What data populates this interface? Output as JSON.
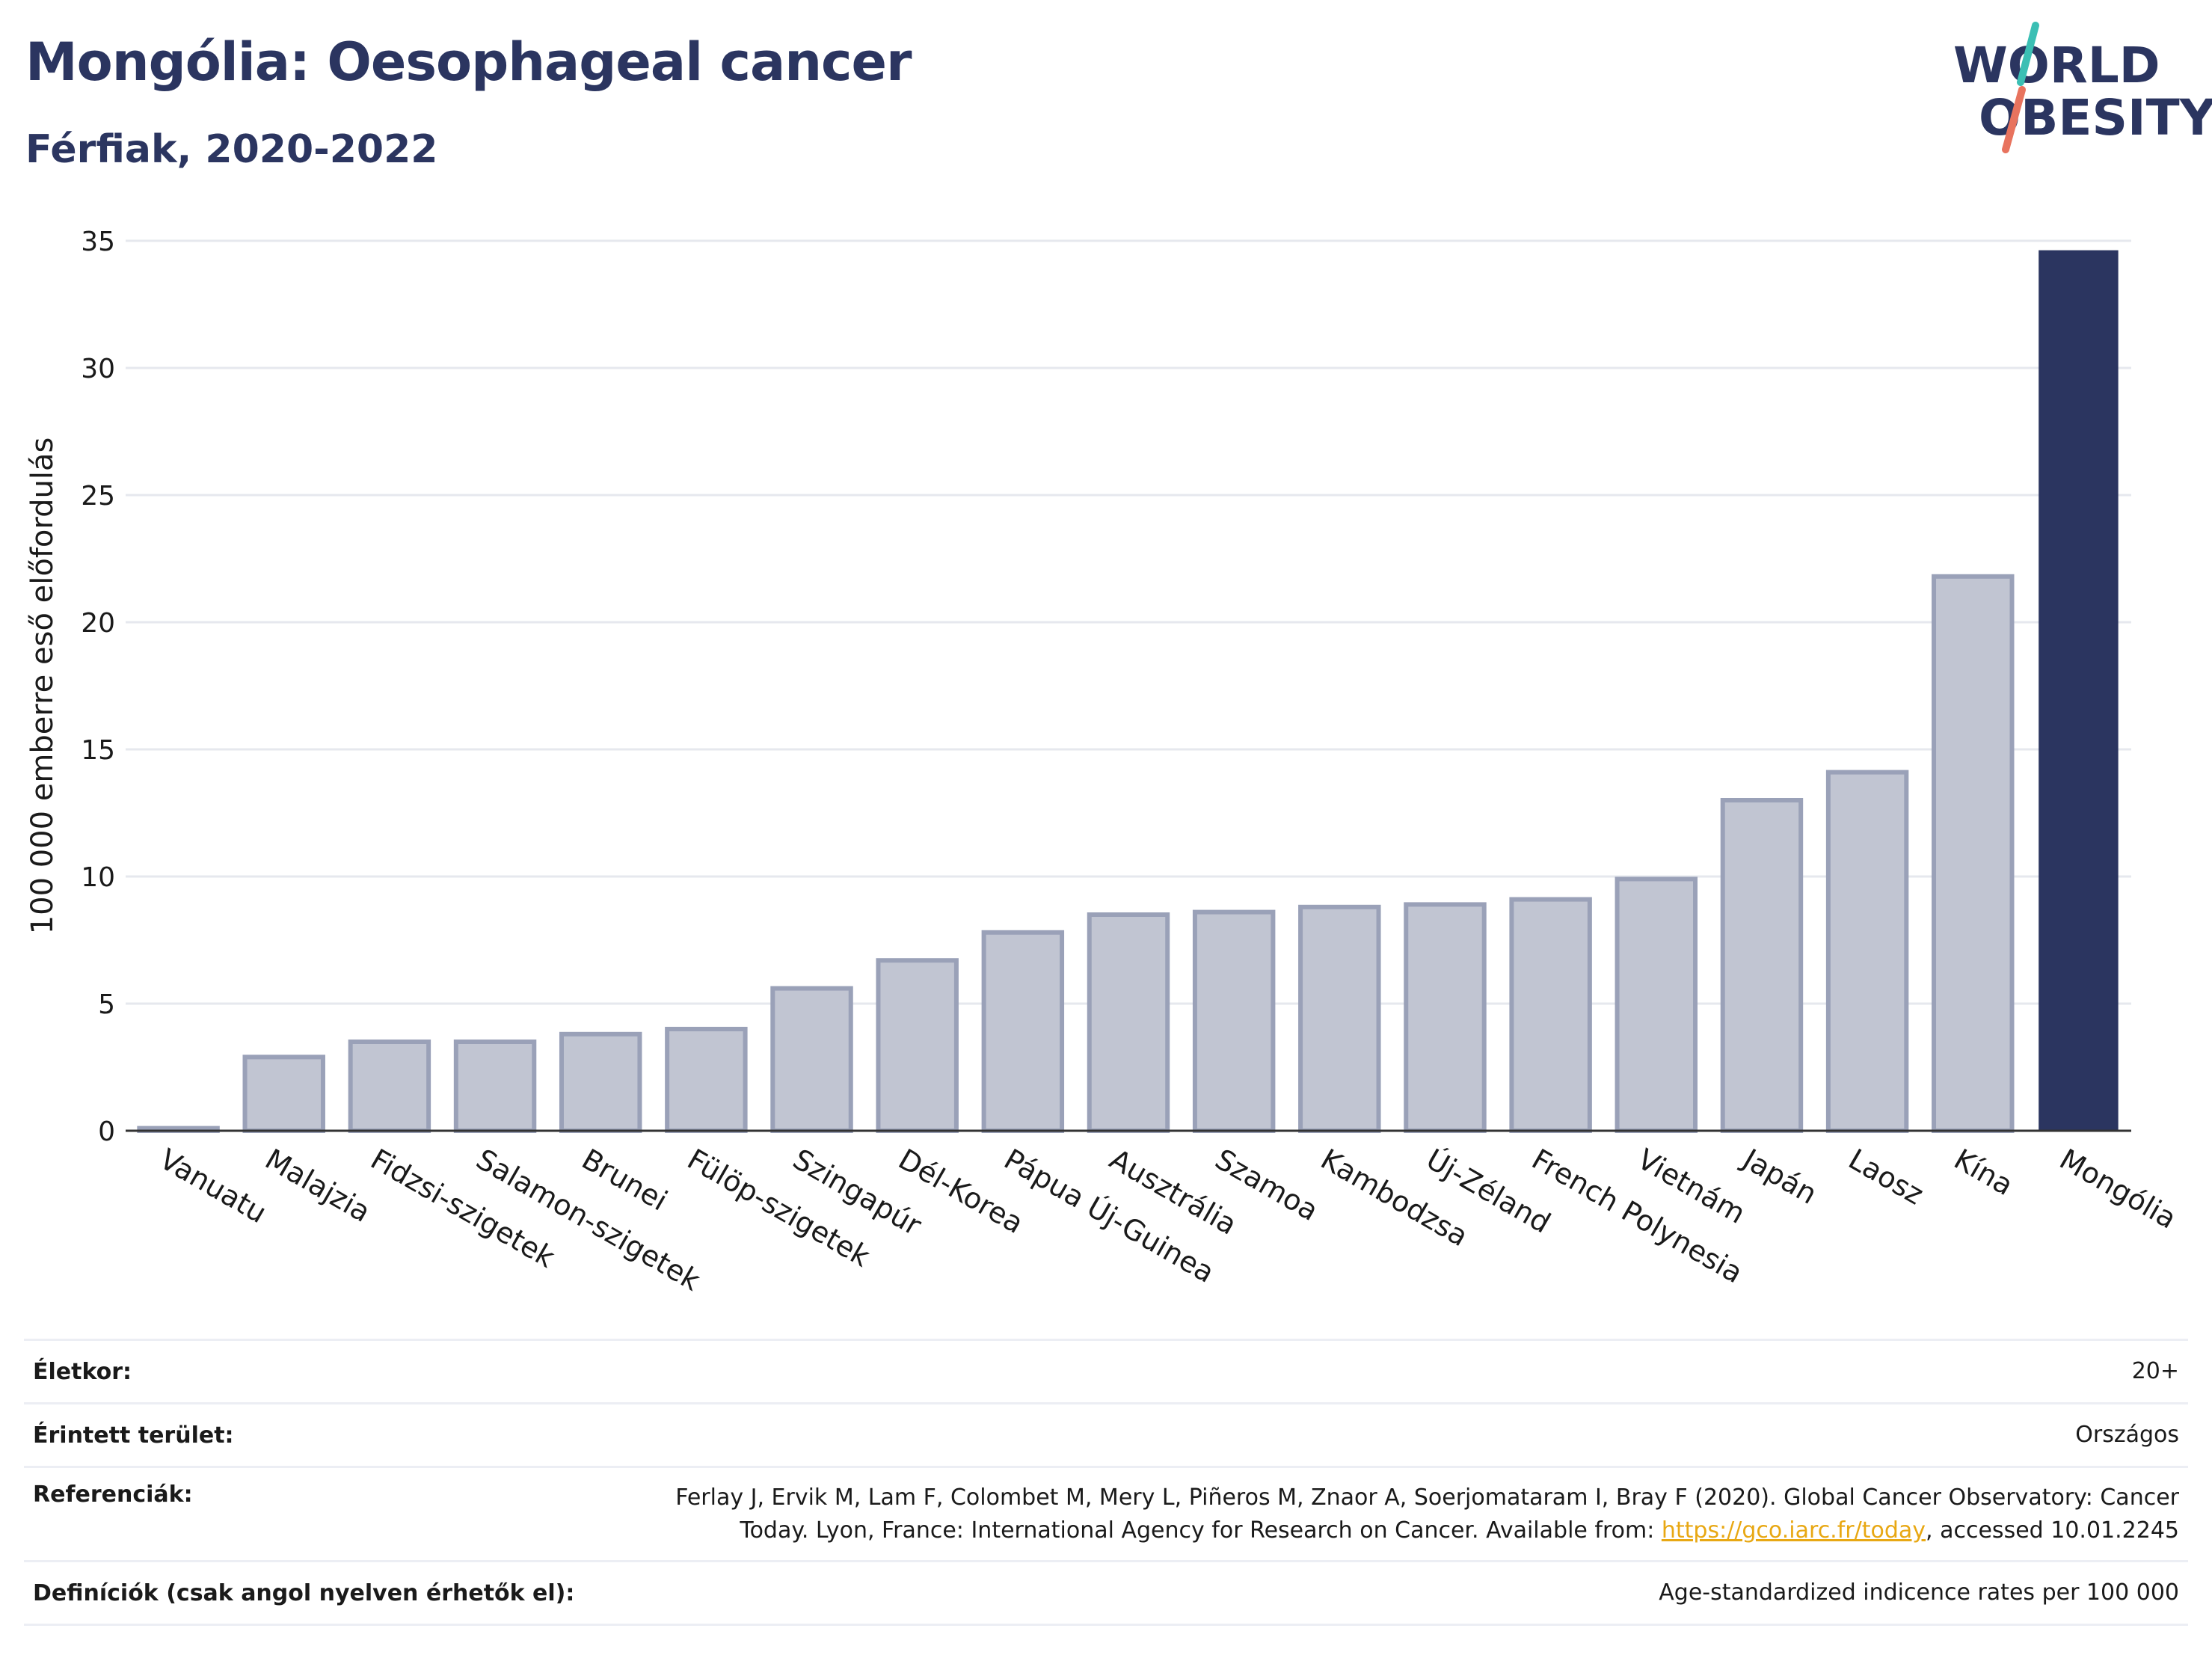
{
  "header": {
    "title": "Mongólia: Oesophageal cancer",
    "subtitle": "Férfiak, 2020-2022",
    "logo_line1": "WORLD",
    "logo_line2": "OBESITY"
  },
  "chart_data": {
    "type": "bar",
    "ylabel": "100 000 emberre eső előfordulás",
    "ylim": [
      0,
      35
    ],
    "yticks": [
      0,
      5,
      10,
      15,
      20,
      25,
      30,
      35
    ],
    "grid": true,
    "categories": [
      "Vanuatu",
      "Malajzia",
      "Fidzsi-szigetek",
      "Salamon-szigetek",
      "Brunei",
      "Fülöp-szigetek",
      "Szingapúr",
      "Dél-Korea",
      "Pápua Új-Guinea",
      "Ausztrália",
      "Szamoa",
      "Kambodzsa",
      "Új-Zéland",
      "French Polynesia",
      "Vietnám",
      "Japán",
      "Laosz",
      "Kína",
      "Mongólia"
    ],
    "values": [
      0.1,
      2.9,
      3.5,
      3.5,
      3.8,
      4.0,
      5.6,
      6.7,
      7.8,
      8.5,
      8.6,
      8.8,
      8.9,
      9.1,
      9.9,
      13.0,
      14.1,
      21.8,
      34.6
    ],
    "highlight": "Mongólia",
    "colors": {
      "bar": "#c1c5d2",
      "bar_stroke": "#9aa1b8",
      "highlight": "#2b3560",
      "grid": "#e6e8ee",
      "axis": "#333333"
    }
  },
  "info": {
    "age_label": "Életkor:",
    "age_value": "20+",
    "area_label": "Érintett terület:",
    "area_value": "Országos",
    "ref_label": "Referenciák:",
    "ref_text1": "Ferlay J, Ervik M, Lam F, Colombet M, Mery L, Piñeros M, Znaor A, Soerjomataram I, Bray F (2020). Global Cancer Observatory: Cancer",
    "ref_text2": "Today. Lyon, France: International Agency for Research on Cancer. Available from:",
    "ref_link": "https://gco.iarc.fr/today",
    "ref_text3": ", accessed 10.01.2245",
    "def_label": "Definíciók (csak angol nyelven érhetők el):",
    "def_value": "Age-standardized indicence rates per 100 000"
  }
}
